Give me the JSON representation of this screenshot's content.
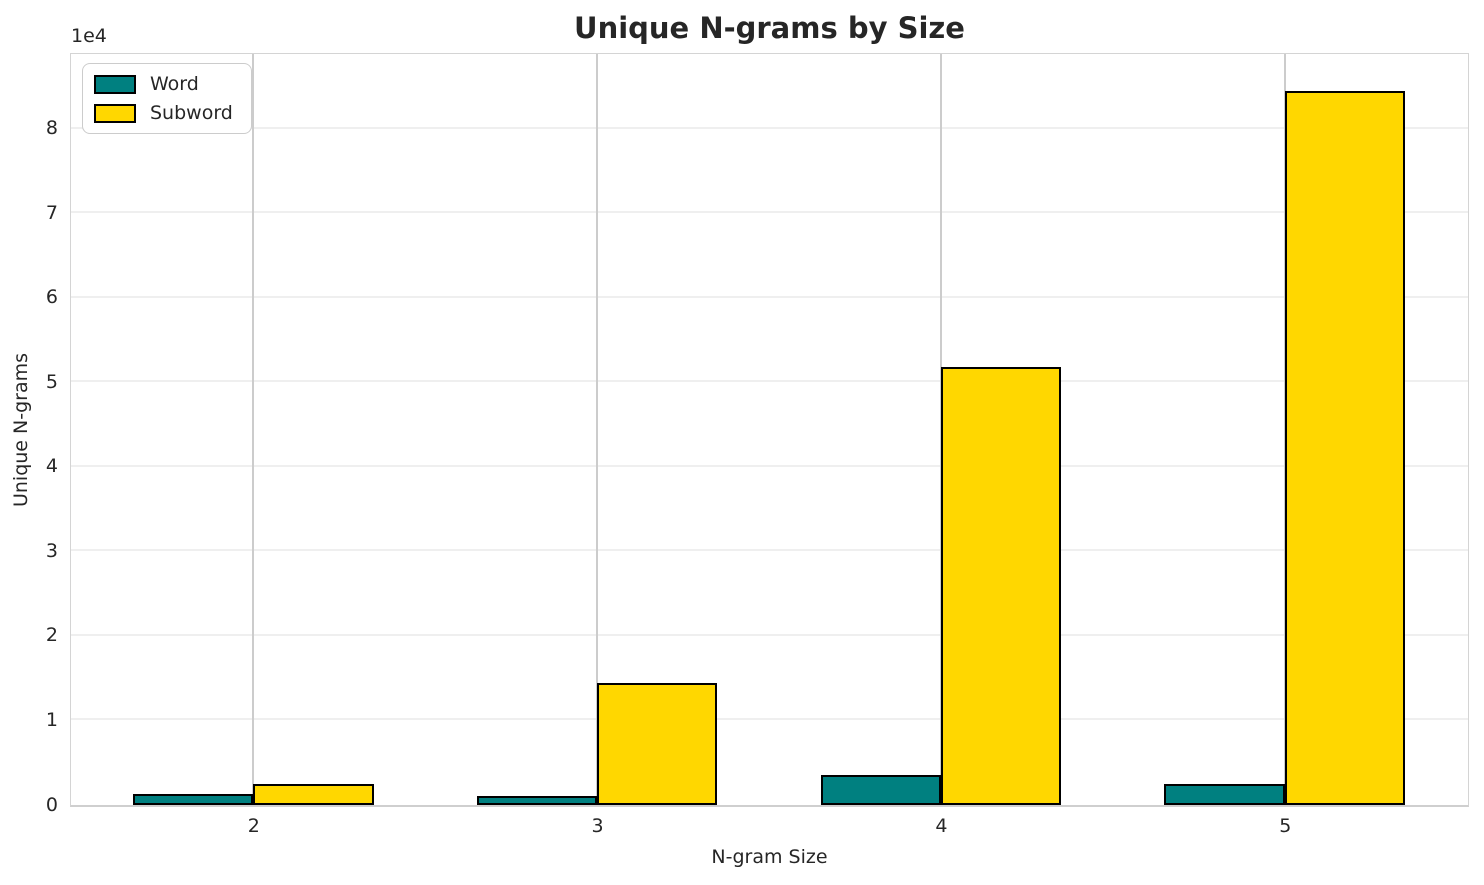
{
  "chart_data": {
    "type": "bar",
    "title": "Unique N-grams by Size",
    "xlabel": "N-gram Size",
    "ylabel": "Unique N-grams",
    "y_offset_label": "1e4",
    "categories": [
      2,
      3,
      4,
      5
    ],
    "series": [
      {
        "name": "Word",
        "color": "#008080",
        "values": [
          1250,
          1100,
          3600,
          2450
        ]
      },
      {
        "name": "Subword",
        "color": "#ffd700",
        "values": [
          2450,
          14400,
          51800,
          84500
        ]
      }
    ],
    "bar_edge_color": "#000000",
    "bar_width": 0.35,
    "xlim": [
      1.47,
      5.53
    ],
    "ylim": [
      0,
      88700
    ],
    "y_ticks": [
      0,
      1,
      2,
      3,
      4,
      5,
      6,
      7,
      8
    ],
    "y_tick_scale": 10000,
    "grid": true,
    "legend_position": "upper left"
  }
}
